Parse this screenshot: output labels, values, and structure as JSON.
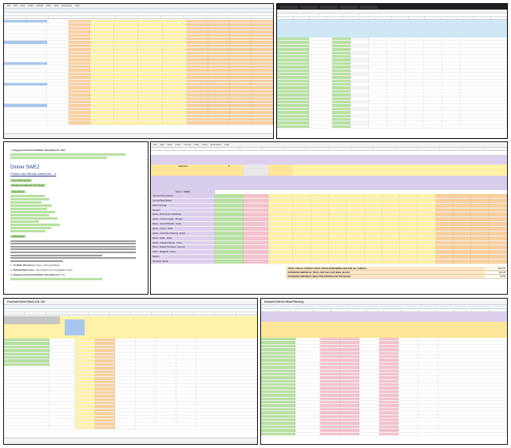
{
  "screenshots": [
    {
      "id": "top_left",
      "menu": [
        "File",
        "Edit",
        "View",
        "Insert",
        "Format",
        "Data",
        "Tools",
        "Extensions",
        "Help"
      ]
    },
    {
      "id": "top_right"
    },
    {
      "id": "mid_left",
      "heading_note": "Suggested Seasonal/Other Substitutions: N/A",
      "title": "Dinner SWE2",
      "subtitle": "Protein and Beans casserole - V",
      "time": "Time: 60 minutes",
      "serves": "Recipe is scaled for 8 portions",
      "ingredients_label": "Ingredients",
      "instructions_label": "Instructions",
      "bullets": [
        {
          "n": "1.",
          "label": "To Make Directions:",
          "text": "Serve with sourdough"
        },
        {
          "n": "2.",
          "label": "Related Meal Uses:",
          "text": "Use leftovers as a breakfast option"
        },
        {
          "n": "3.",
          "label": "Suggested Seasonal/Other Substitutions:",
          "text": "N/A"
        }
      ]
    },
    {
      "id": "center_big",
      "menu": [
        "File",
        "Edit",
        "View",
        "Insert",
        "Format",
        "Data",
        "Tools",
        "Extensions",
        "Help"
      ],
      "header_cells": [
        "SERVES",
        "8",
        "",
        "",
        "",
        "",
        ""
      ],
      "section_label": "Dinner SWE2",
      "rows": [
        "Canned Kidney Beans",
        "Canned Black Beans",
        "Dark Chocolate",
        "Spinach",
        "Herbs - Broccoli (Or Substitute)",
        "Herbs - Coconut Sugar - Parsley",
        "Pasta - Ground Paprika - Dried",
        "Herbs - Cumin - Dried",
        "Herbs - Coriander (Cilantro) - Dried",
        "Pasta - Garlic - Dried",
        "Herbs - Smoked Paprika - Dried",
        "Pasta - Peeled Tomatoes - Canned",
        "Pasta - Spaghetti - Dried",
        "Raisins",
        "Sunflower Seeds"
      ],
      "totals": [
        {
          "label": "TOTAL FOR ALL PEOPLE (TOTAL POPULATION BEING FED) FOR ALL 3 MEALS",
          "value": "$793.00"
        },
        {
          "label": "ESTIMATED INDIVIDUAL TOTAL FOR THE 3 DAY MEAL BLOCK",
          "value": "$41.28"
        },
        {
          "label": "ESTIMATED INDIVIDUAL MEAL PER PERSON FOR THIS BLOCK",
          "value": "$4.59"
        }
      ]
    },
    {
      "id": "bottom_left",
      "title": "Food and Herbs Stock & B. Cal"
    },
    {
      "id": "bottom_right",
      "title": "Seasonal Kitchen Meal Planning"
    }
  ],
  "colors": {
    "sheet_yellow": "#fff2a8",
    "sheet_orange": "#f9cf9e",
    "sheet_green": "#b7e1a1",
    "sheet_pink": "#f4c2cc",
    "sheet_purple": "#dccfee",
    "sheet_blue": "#a7c7f0",
    "link_blue": "#2a5bd7"
  }
}
